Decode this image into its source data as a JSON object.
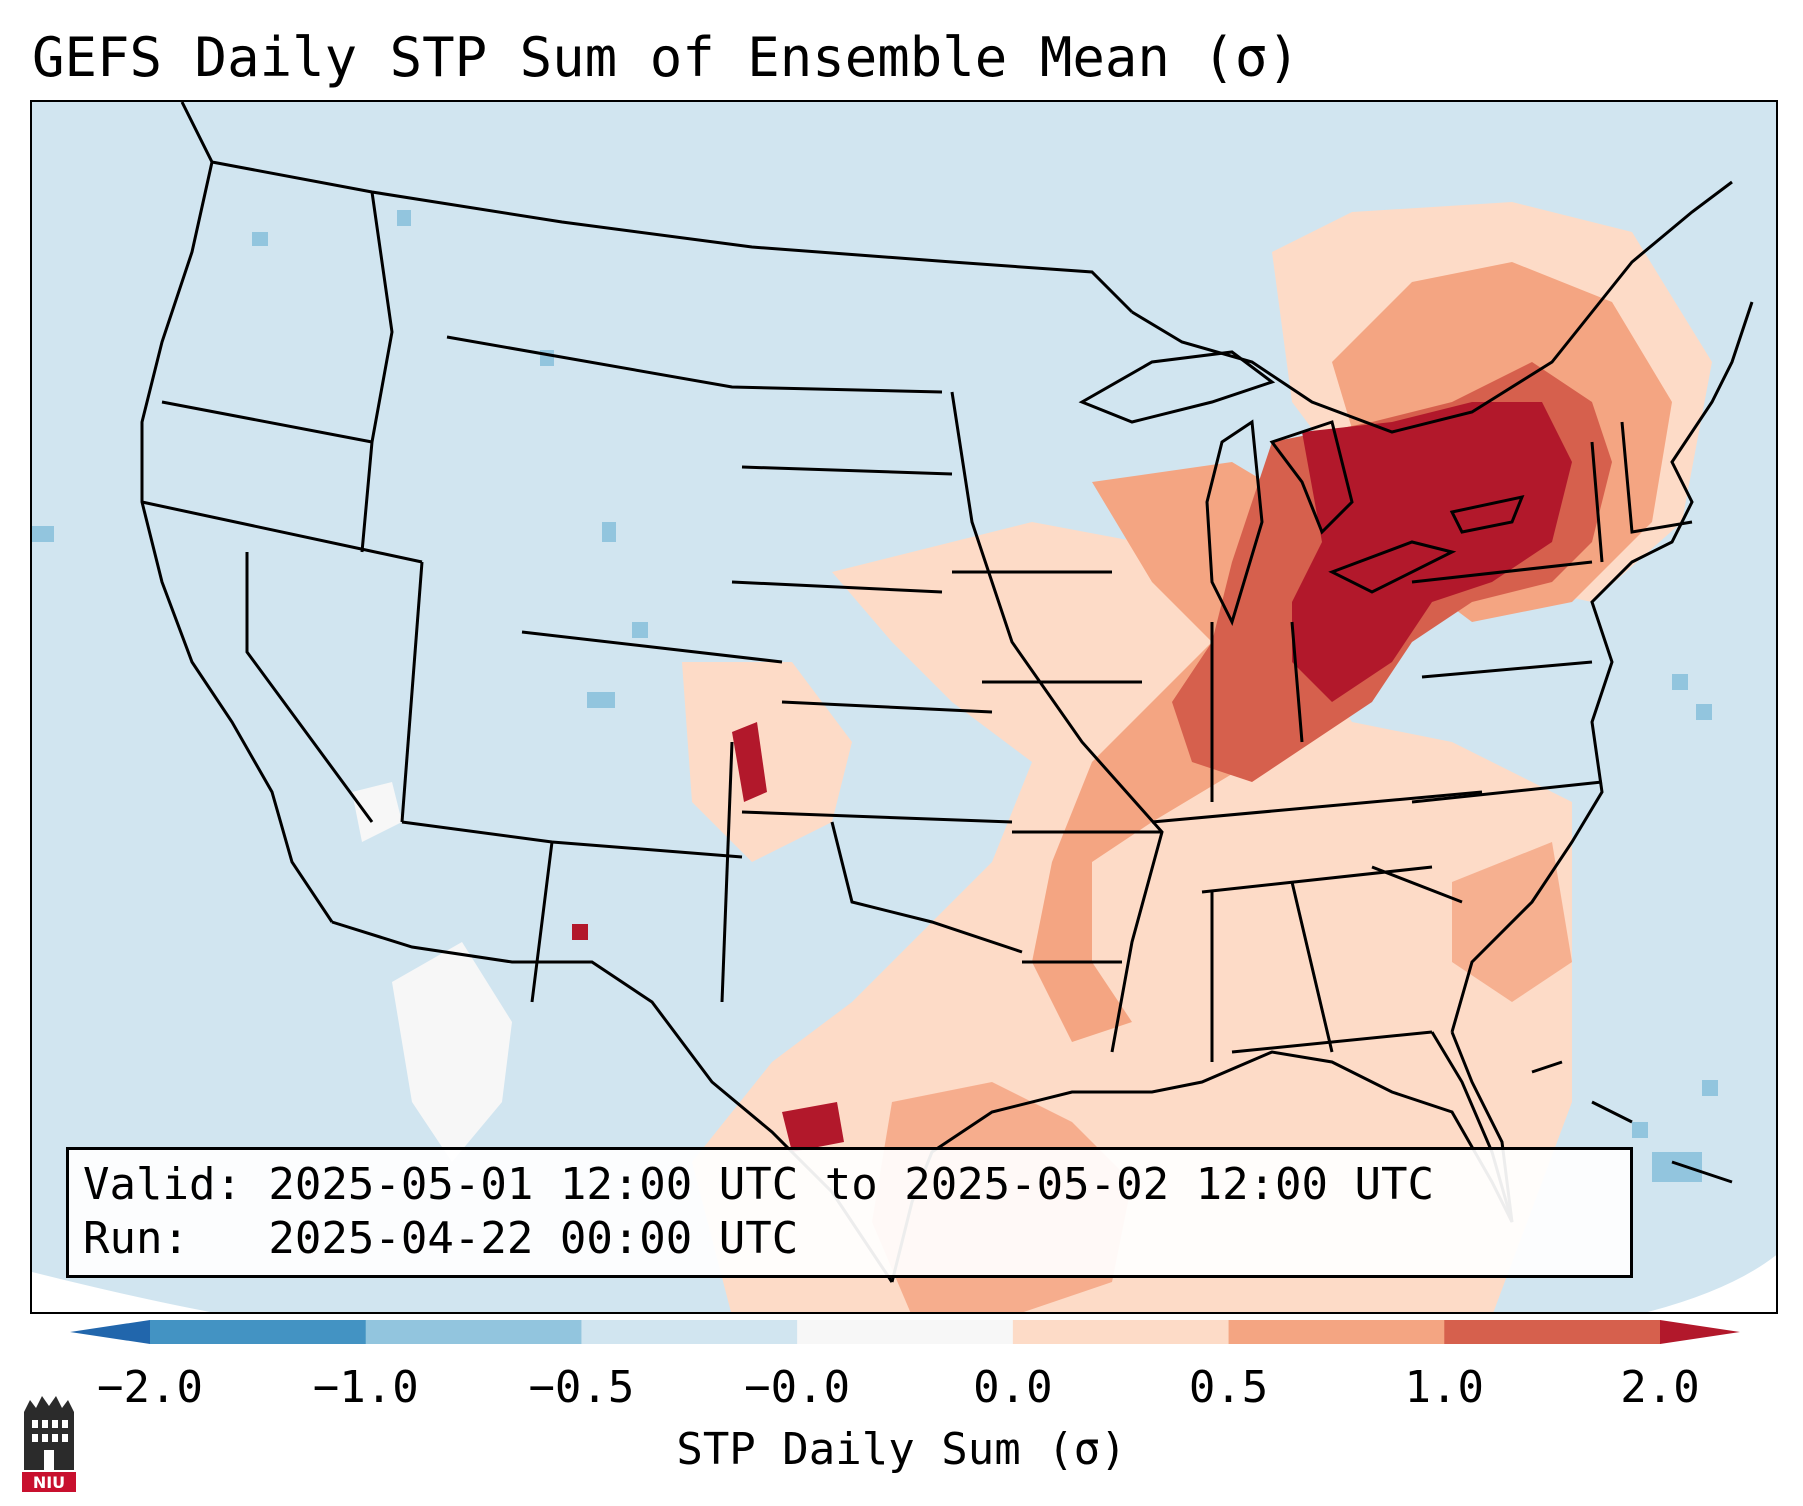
{
  "title": "GEFS Daily STP Sum of Ensemble Mean (σ)",
  "map": {
    "region": "Continental United States",
    "ocean_color": "#d1e5f0",
    "border_color": "#000000"
  },
  "info": {
    "valid_line": "Valid: 2025-05-01 12:00 UTC to 2025-05-02 12:00 UTC",
    "run_line": "Run:   2025-04-22 00:00 UTC"
  },
  "colorbar": {
    "label": "STP Daily Sum (σ)",
    "ticks": [
      "−2.0",
      "−1.0",
      "−0.5",
      "−0.0",
      "0.0",
      "0.5",
      "1.0",
      "2.0"
    ],
    "under_color": "#2166ac",
    "over_color": "#b2182b",
    "colors": [
      "#4393c3",
      "#92c5de",
      "#d1e5f0",
      "#f7f7f7",
      "#fddbc7",
      "#f4a582",
      "#d6604d"
    ]
  },
  "logo": {
    "icon": "niu-logo-icon",
    "text": "NIU"
  }
}
